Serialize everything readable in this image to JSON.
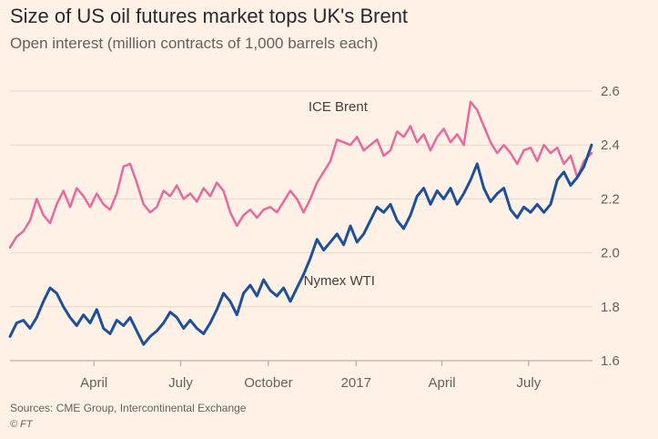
{
  "title": "Size of US oil futures market tops UK's Brent",
  "subtitle": "Open interest (million contracts of 1,000 barrels each)",
  "source": "Sources: CME Group, Intercontinental Exchange",
  "credit": "© FT",
  "colors": {
    "background": "#fff1e5",
    "brent": "#e8699d",
    "wti": "#1c4f9c",
    "grid": "#e5d6c9",
    "text": "#66605c"
  },
  "chart_data": {
    "type": "line",
    "title": "Size of US oil futures market tops UK's Brent",
    "subtitle": "Open interest (million contracts of 1,000 barrels each)",
    "ylim": [
      1.6,
      2.6
    ],
    "yticks": [
      1.6,
      1.8,
      2.0,
      2.2,
      2.4,
      2.6
    ],
    "ytick_labels": [
      "1.6",
      "1.8",
      "2.0",
      "2.2",
      "2.4",
      "2.6"
    ],
    "y_axis_position": "right",
    "grid": true,
    "x_range": [
      "2016-01-04",
      "2017-09-05"
    ],
    "xticks": [
      {
        "date": "2016-04-01",
        "label": "April"
      },
      {
        "date": "2016-07-01",
        "label": "July"
      },
      {
        "date": "2016-10-01",
        "label": "October"
      },
      {
        "date": "2017-01-01",
        "label": "2017"
      },
      {
        "date": "2017-04-01",
        "label": "April"
      },
      {
        "date": "2017-07-01",
        "label": "July"
      }
    ],
    "series": [
      {
        "name": "ICE Brent",
        "color": "#e8699d",
        "points": [
          [
            "2016-01-04",
            2.02
          ],
          [
            "2016-01-11",
            2.06
          ],
          [
            "2016-01-18",
            2.08
          ],
          [
            "2016-01-25",
            2.12
          ],
          [
            "2016-02-01",
            2.2
          ],
          [
            "2016-02-08",
            2.14
          ],
          [
            "2016-02-15",
            2.11
          ],
          [
            "2016-02-22",
            2.18
          ],
          [
            "2016-02-29",
            2.23
          ],
          [
            "2016-03-07",
            2.17
          ],
          [
            "2016-03-14",
            2.24
          ],
          [
            "2016-03-21",
            2.21
          ],
          [
            "2016-03-28",
            2.17
          ],
          [
            "2016-04-04",
            2.22
          ],
          [
            "2016-04-11",
            2.18
          ],
          [
            "2016-04-18",
            2.16
          ],
          [
            "2016-04-25",
            2.22
          ],
          [
            "2016-05-02",
            2.32
          ],
          [
            "2016-05-09",
            2.33
          ],
          [
            "2016-05-16",
            2.26
          ],
          [
            "2016-05-23",
            2.18
          ],
          [
            "2016-05-30",
            2.15
          ],
          [
            "2016-06-06",
            2.17
          ],
          [
            "2016-06-13",
            2.23
          ],
          [
            "2016-06-20",
            2.21
          ],
          [
            "2016-06-27",
            2.25
          ],
          [
            "2016-07-04",
            2.2
          ],
          [
            "2016-07-11",
            2.22
          ],
          [
            "2016-07-18",
            2.19
          ],
          [
            "2016-07-25",
            2.24
          ],
          [
            "2016-08-01",
            2.21
          ],
          [
            "2016-08-08",
            2.26
          ],
          [
            "2016-08-15",
            2.23
          ],
          [
            "2016-08-22",
            2.15
          ],
          [
            "2016-08-29",
            2.1
          ],
          [
            "2016-09-05",
            2.14
          ],
          [
            "2016-09-12",
            2.16
          ],
          [
            "2016-09-19",
            2.13
          ],
          [
            "2016-09-26",
            2.16
          ],
          [
            "2016-10-03",
            2.17
          ],
          [
            "2016-10-10",
            2.15
          ],
          [
            "2016-10-17",
            2.19
          ],
          [
            "2016-10-24",
            2.23
          ],
          [
            "2016-10-31",
            2.2
          ],
          [
            "2016-11-07",
            2.15
          ],
          [
            "2016-11-14",
            2.2
          ],
          [
            "2016-11-21",
            2.26
          ],
          [
            "2016-11-28",
            2.3
          ],
          [
            "2016-12-05",
            2.34
          ],
          [
            "2016-12-12",
            2.42
          ],
          [
            "2016-12-19",
            2.41
          ],
          [
            "2016-12-26",
            2.4
          ],
          [
            "2017-01-02",
            2.43
          ],
          [
            "2017-01-09",
            2.38
          ],
          [
            "2017-01-16",
            2.4
          ],
          [
            "2017-01-23",
            2.42
          ],
          [
            "2017-01-30",
            2.36
          ],
          [
            "2017-02-06",
            2.38
          ],
          [
            "2017-02-13",
            2.45
          ],
          [
            "2017-02-20",
            2.43
          ],
          [
            "2017-02-27",
            2.47
          ],
          [
            "2017-03-06",
            2.41
          ],
          [
            "2017-03-13",
            2.44
          ],
          [
            "2017-03-20",
            2.38
          ],
          [
            "2017-03-27",
            2.43
          ],
          [
            "2017-04-03",
            2.46
          ],
          [
            "2017-04-10",
            2.41
          ],
          [
            "2017-04-17",
            2.44
          ],
          [
            "2017-04-24",
            2.4
          ],
          [
            "2017-05-01",
            2.56
          ],
          [
            "2017-05-08",
            2.53
          ],
          [
            "2017-05-15",
            2.47
          ],
          [
            "2017-05-22",
            2.41
          ],
          [
            "2017-05-29",
            2.37
          ],
          [
            "2017-06-05",
            2.4
          ],
          [
            "2017-06-12",
            2.37
          ],
          [
            "2017-06-19",
            2.33
          ],
          [
            "2017-06-26",
            2.38
          ],
          [
            "2017-07-03",
            2.39
          ],
          [
            "2017-07-10",
            2.34
          ],
          [
            "2017-07-17",
            2.4
          ],
          [
            "2017-07-24",
            2.37
          ],
          [
            "2017-07-31",
            2.39
          ],
          [
            "2017-08-07",
            2.33
          ],
          [
            "2017-08-14",
            2.36
          ],
          [
            "2017-08-21",
            2.28
          ],
          [
            "2017-08-28",
            2.34
          ],
          [
            "2017-09-05",
            2.37
          ]
        ]
      },
      {
        "name": "Nymex WTI",
        "color": "#1c4f9c",
        "points": [
          [
            "2016-01-04",
            1.69
          ],
          [
            "2016-01-11",
            1.74
          ],
          [
            "2016-01-18",
            1.75
          ],
          [
            "2016-01-25",
            1.72
          ],
          [
            "2016-02-01",
            1.76
          ],
          [
            "2016-02-08",
            1.82
          ],
          [
            "2016-02-15",
            1.87
          ],
          [
            "2016-02-22",
            1.85
          ],
          [
            "2016-02-29",
            1.8
          ],
          [
            "2016-03-07",
            1.76
          ],
          [
            "2016-03-14",
            1.73
          ],
          [
            "2016-03-21",
            1.77
          ],
          [
            "2016-03-28",
            1.74
          ],
          [
            "2016-04-04",
            1.79
          ],
          [
            "2016-04-11",
            1.72
          ],
          [
            "2016-04-18",
            1.7
          ],
          [
            "2016-04-25",
            1.75
          ],
          [
            "2016-05-02",
            1.73
          ],
          [
            "2016-05-09",
            1.76
          ],
          [
            "2016-05-16",
            1.71
          ],
          [
            "2016-05-23",
            1.66
          ],
          [
            "2016-05-30",
            1.69
          ],
          [
            "2016-06-06",
            1.71
          ],
          [
            "2016-06-13",
            1.74
          ],
          [
            "2016-06-20",
            1.78
          ],
          [
            "2016-06-27",
            1.76
          ],
          [
            "2016-07-04",
            1.72
          ],
          [
            "2016-07-11",
            1.75
          ],
          [
            "2016-07-18",
            1.72
          ],
          [
            "2016-07-25",
            1.7
          ],
          [
            "2016-08-01",
            1.74
          ],
          [
            "2016-08-08",
            1.79
          ],
          [
            "2016-08-15",
            1.85
          ],
          [
            "2016-08-22",
            1.82
          ],
          [
            "2016-08-29",
            1.77
          ],
          [
            "2016-09-05",
            1.85
          ],
          [
            "2016-09-12",
            1.88
          ],
          [
            "2016-09-19",
            1.84
          ],
          [
            "2016-09-26",
            1.9
          ],
          [
            "2016-10-03",
            1.86
          ],
          [
            "2016-10-10",
            1.84
          ],
          [
            "2016-10-17",
            1.87
          ],
          [
            "2016-10-24",
            1.82
          ],
          [
            "2016-10-31",
            1.87
          ],
          [
            "2016-11-07",
            1.92
          ],
          [
            "2016-11-14",
            1.98
          ],
          [
            "2016-11-21",
            2.05
          ],
          [
            "2016-11-28",
            2.01
          ],
          [
            "2016-12-05",
            2.04
          ],
          [
            "2016-12-12",
            2.07
          ],
          [
            "2016-12-19",
            2.03
          ],
          [
            "2016-12-26",
            2.1
          ],
          [
            "2017-01-02",
            2.04
          ],
          [
            "2017-01-09",
            2.07
          ],
          [
            "2017-01-16",
            2.12
          ],
          [
            "2017-01-23",
            2.17
          ],
          [
            "2017-01-30",
            2.15
          ],
          [
            "2017-02-06",
            2.18
          ],
          [
            "2017-02-13",
            2.12
          ],
          [
            "2017-02-20",
            2.09
          ],
          [
            "2017-02-27",
            2.14
          ],
          [
            "2017-03-06",
            2.21
          ],
          [
            "2017-03-13",
            2.24
          ],
          [
            "2017-03-20",
            2.18
          ],
          [
            "2017-03-27",
            2.23
          ],
          [
            "2017-04-03",
            2.2
          ],
          [
            "2017-04-10",
            2.24
          ],
          [
            "2017-04-17",
            2.18
          ],
          [
            "2017-04-24",
            2.22
          ],
          [
            "2017-05-01",
            2.27
          ],
          [
            "2017-05-08",
            2.33
          ],
          [
            "2017-05-15",
            2.24
          ],
          [
            "2017-05-22",
            2.19
          ],
          [
            "2017-05-29",
            2.22
          ],
          [
            "2017-06-05",
            2.24
          ],
          [
            "2017-06-12",
            2.16
          ],
          [
            "2017-06-19",
            2.13
          ],
          [
            "2017-06-26",
            2.17
          ],
          [
            "2017-07-03",
            2.15
          ],
          [
            "2017-07-10",
            2.18
          ],
          [
            "2017-07-17",
            2.15
          ],
          [
            "2017-07-24",
            2.18
          ],
          [
            "2017-07-31",
            2.27
          ],
          [
            "2017-08-07",
            2.3
          ],
          [
            "2017-08-14",
            2.25
          ],
          [
            "2017-08-21",
            2.28
          ],
          [
            "2017-08-28",
            2.32
          ],
          [
            "2017-09-05",
            2.4
          ]
        ]
      }
    ]
  }
}
